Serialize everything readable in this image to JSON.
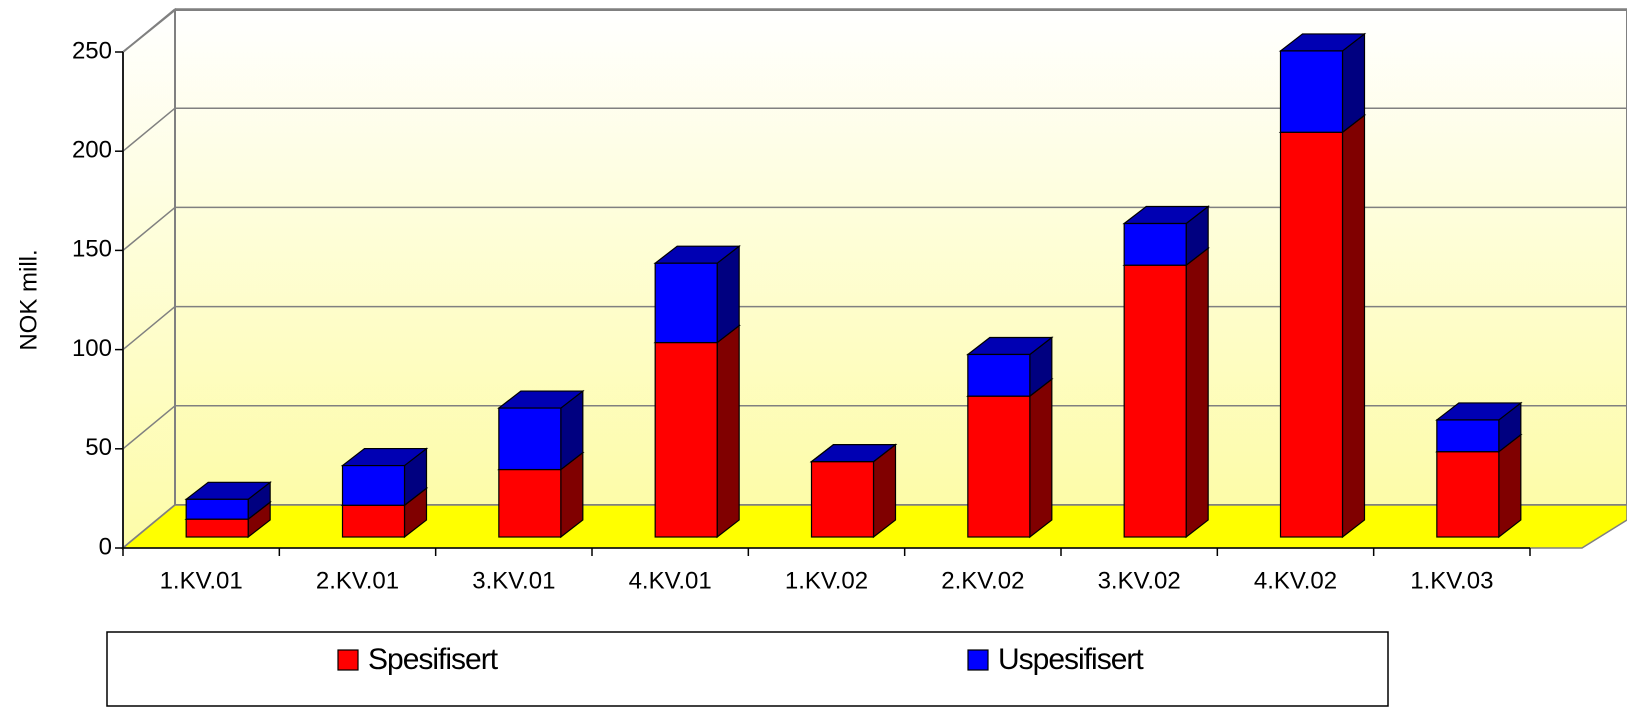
{
  "chart_data": {
    "type": "bar3d_stacked",
    "y_label": "NOK mill.",
    "categories": [
      "1.KV.01",
      "2.KV.01",
      "3.KV.01",
      "4.KV.01",
      "1.KV.02",
      "2.KV.02",
      "3.KV.02",
      "4.KV.02",
      "1.KV.03"
    ],
    "series": [
      {
        "name": "Spesifisert",
        "color": "#ff0000",
        "values": [
          9,
          16,
          34,
          98,
          38,
          71,
          137,
          204,
          43
        ]
      },
      {
        "name": "Uspesifisert",
        "color": "#0000ff",
        "values": [
          10,
          20,
          31,
          40,
          0,
          21,
          21,
          41,
          16
        ]
      }
    ],
    "ylim": [
      0,
      250
    ],
    "yticks": [
      0,
      50,
      100,
      150,
      200,
      250
    ],
    "grid": true,
    "legend": "bottom"
  }
}
